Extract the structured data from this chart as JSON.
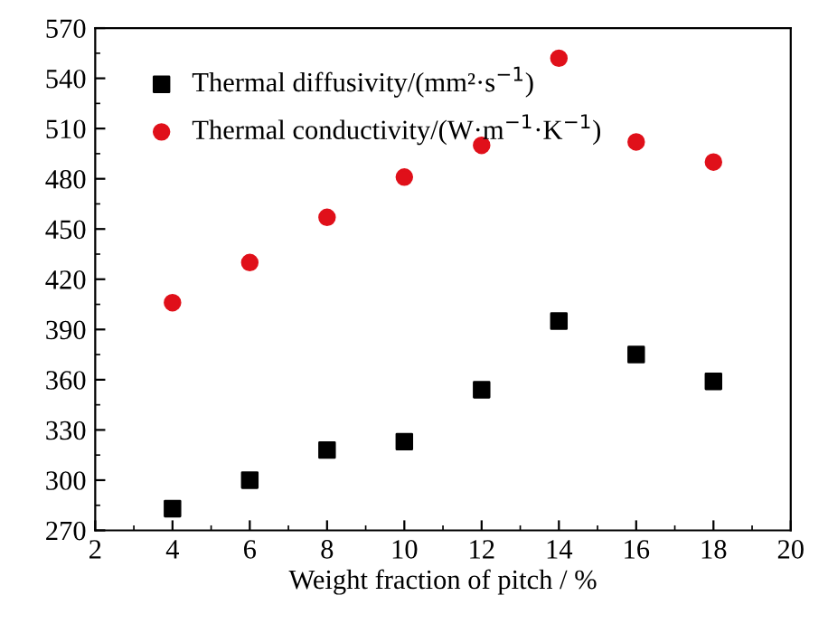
{
  "chart_data": {
    "type": "scatter",
    "xlabel": "Weight fraction of pitch / %",
    "x": [
      4,
      6,
      8,
      10,
      12,
      14,
      16,
      18
    ],
    "series": [
      {
        "name": "Thermal diffusivity/(mm²·s$^{−1}$)",
        "color": "#000000",
        "marker": "square",
        "values": [
          283,
          300,
          318,
          323,
          354,
          395,
          375,
          359
        ]
      },
      {
        "name": "Thermal conductivity/(W·m$^{−1}$·K$^{−1}$)",
        "color": "#e0101a",
        "marker": "circle",
        "values": [
          406,
          430,
          457,
          481,
          500,
          552,
          502,
          490
        ]
      }
    ],
    "xlim": [
      2,
      20
    ],
    "xticks": [
      2,
      4,
      6,
      8,
      10,
      12,
      14,
      16,
      18,
      20
    ],
    "ylim": [
      270,
      570
    ],
    "yticks": [
      270,
      300,
      330,
      360,
      390,
      420,
      450,
      480,
      510,
      540,
      570
    ],
    "grid": false,
    "legend": "top left"
  }
}
